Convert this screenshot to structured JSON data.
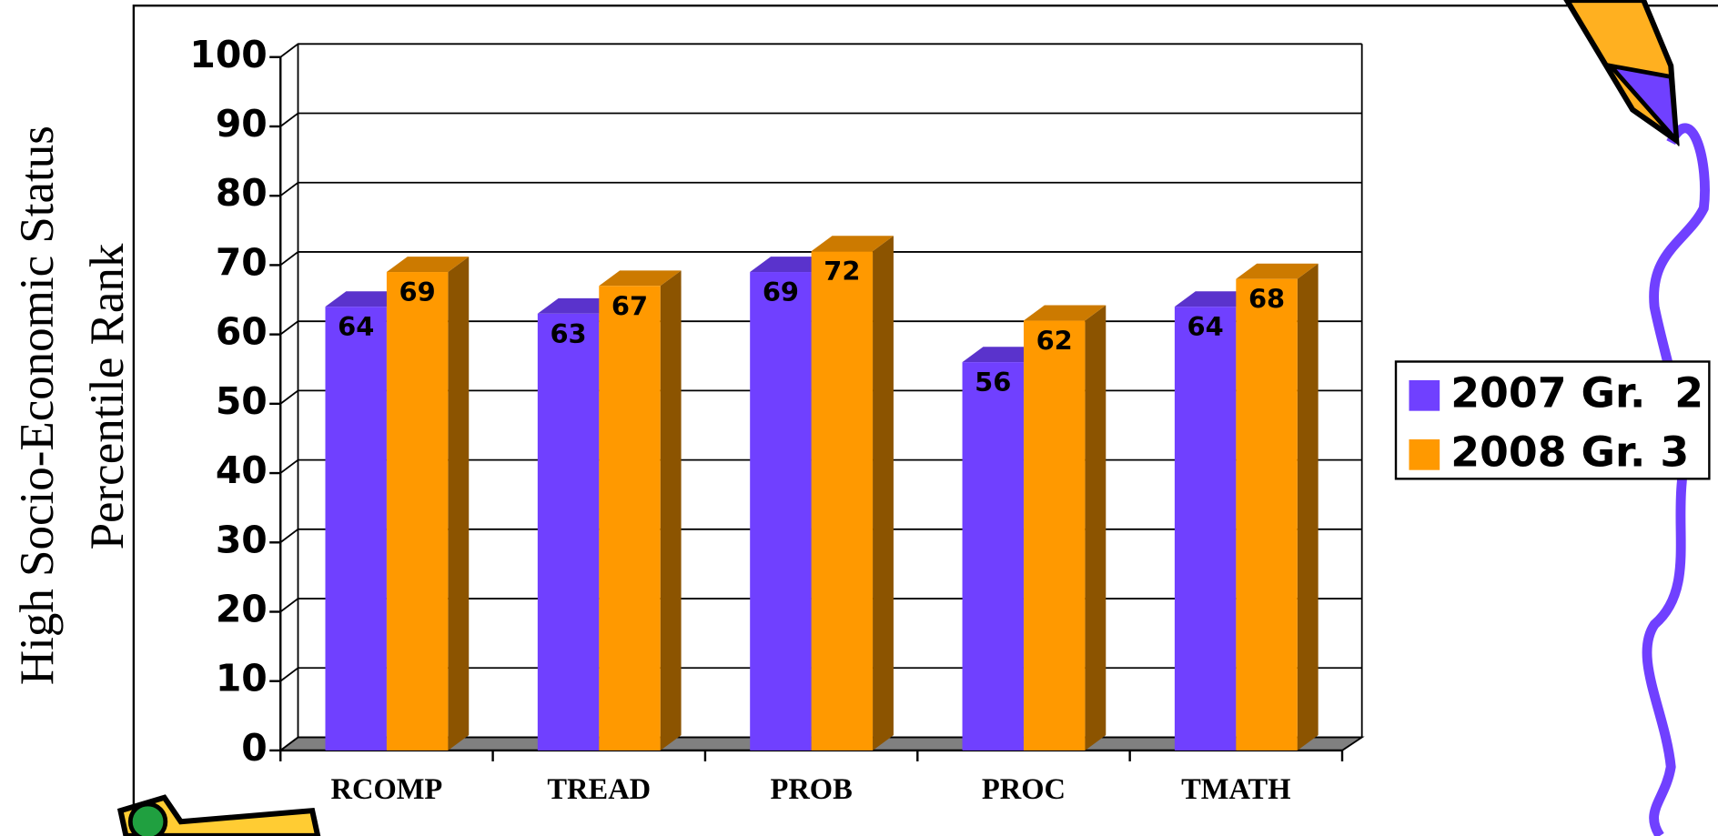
{
  "chart_data": {
    "type": "bar3d",
    "ylabel": [
      "High Socio-Economic Status",
      "Percentile Rank"
    ],
    "categories": [
      "RCOMP",
      "TREAD",
      "PROB",
      "PROC",
      "TMATH"
    ],
    "series": [
      {
        "name": "2007 Gr.  2",
        "color": "#7040ff",
        "values": [
          64,
          63,
          69,
          56,
          64
        ]
      },
      {
        "name": "2008 Gr. 3",
        "color": "#ff9900",
        "values": [
          69,
          67,
          72,
          62,
          68
        ]
      }
    ],
    "ylim": [
      0,
      100
    ],
    "yticks": [
      0,
      10,
      20,
      30,
      40,
      50,
      60,
      70,
      80,
      90,
      100
    ],
    "grid": true,
    "legend": "right"
  }
}
